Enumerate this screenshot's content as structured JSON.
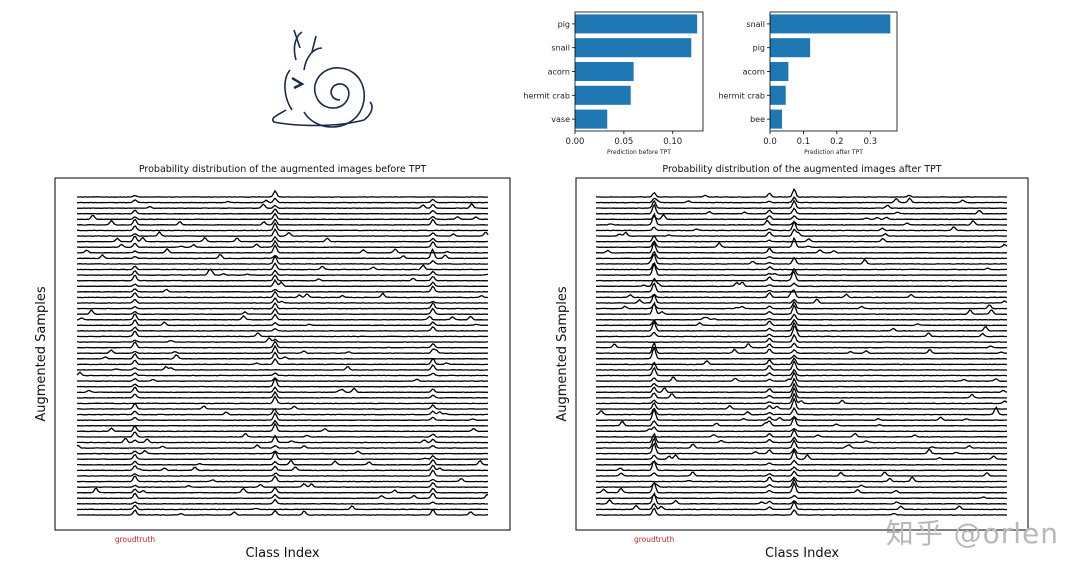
{
  "chart_data": [
    {
      "type": "bar",
      "orientation": "horizontal",
      "categories": [
        "pig",
        "snail",
        "acorn",
        "hermit crab",
        "vase"
      ],
      "values": [
        0.125,
        0.119,
        0.06,
        0.057,
        0.033
      ],
      "xlabel": "Prediction before TPT",
      "xticks": [
        "0.00",
        "0.05",
        "0.10"
      ],
      "xlim": [
        0,
        0.131
      ],
      "color": "#1f77b4"
    },
    {
      "type": "bar",
      "orientation": "horizontal",
      "categories": [
        "snail",
        "pig",
        "acorn",
        "hermit crab",
        "bee"
      ],
      "values": [
        0.36,
        0.12,
        0.055,
        0.047,
        0.036
      ],
      "xlabel": "Prediction after TPT",
      "xticks": [
        "0.0",
        "0.1",
        "0.2",
        "0.3"
      ],
      "xlim": [
        0,
        0.38
      ],
      "color": "#1f77b4"
    },
    {
      "type": "line",
      "subtype": "ridgeline",
      "title": "Probability distribution of the augmented images before TPT",
      "xlabel": "Class Index",
      "ylabel": "Augmented Samples",
      "annotation": "groudtruth",
      "annotation_color": "#cc2222",
      "rows": 58,
      "groundtruth_class": 141,
      "recurring_peak_classes": [
        141,
        482,
        866
      ],
      "peak_strengths": [
        0.5,
        0.7,
        0.5
      ],
      "line_color": "#000000"
    },
    {
      "type": "line",
      "subtype": "ridgeline",
      "title": "Probability distribution of the augmented images after TPT",
      "xlabel": "Class Index",
      "ylabel": "Augmented Samples",
      "annotation": "groudtruth",
      "annotation_color": "#cc2222",
      "rows": 58,
      "groundtruth_class": 141,
      "recurring_peak_classes": [
        141,
        481,
        421
      ],
      "peak_strengths": [
        0.95,
        0.85,
        0.4
      ],
      "line_color": "#000000"
    }
  ],
  "watermark": "知乎 @orlen"
}
